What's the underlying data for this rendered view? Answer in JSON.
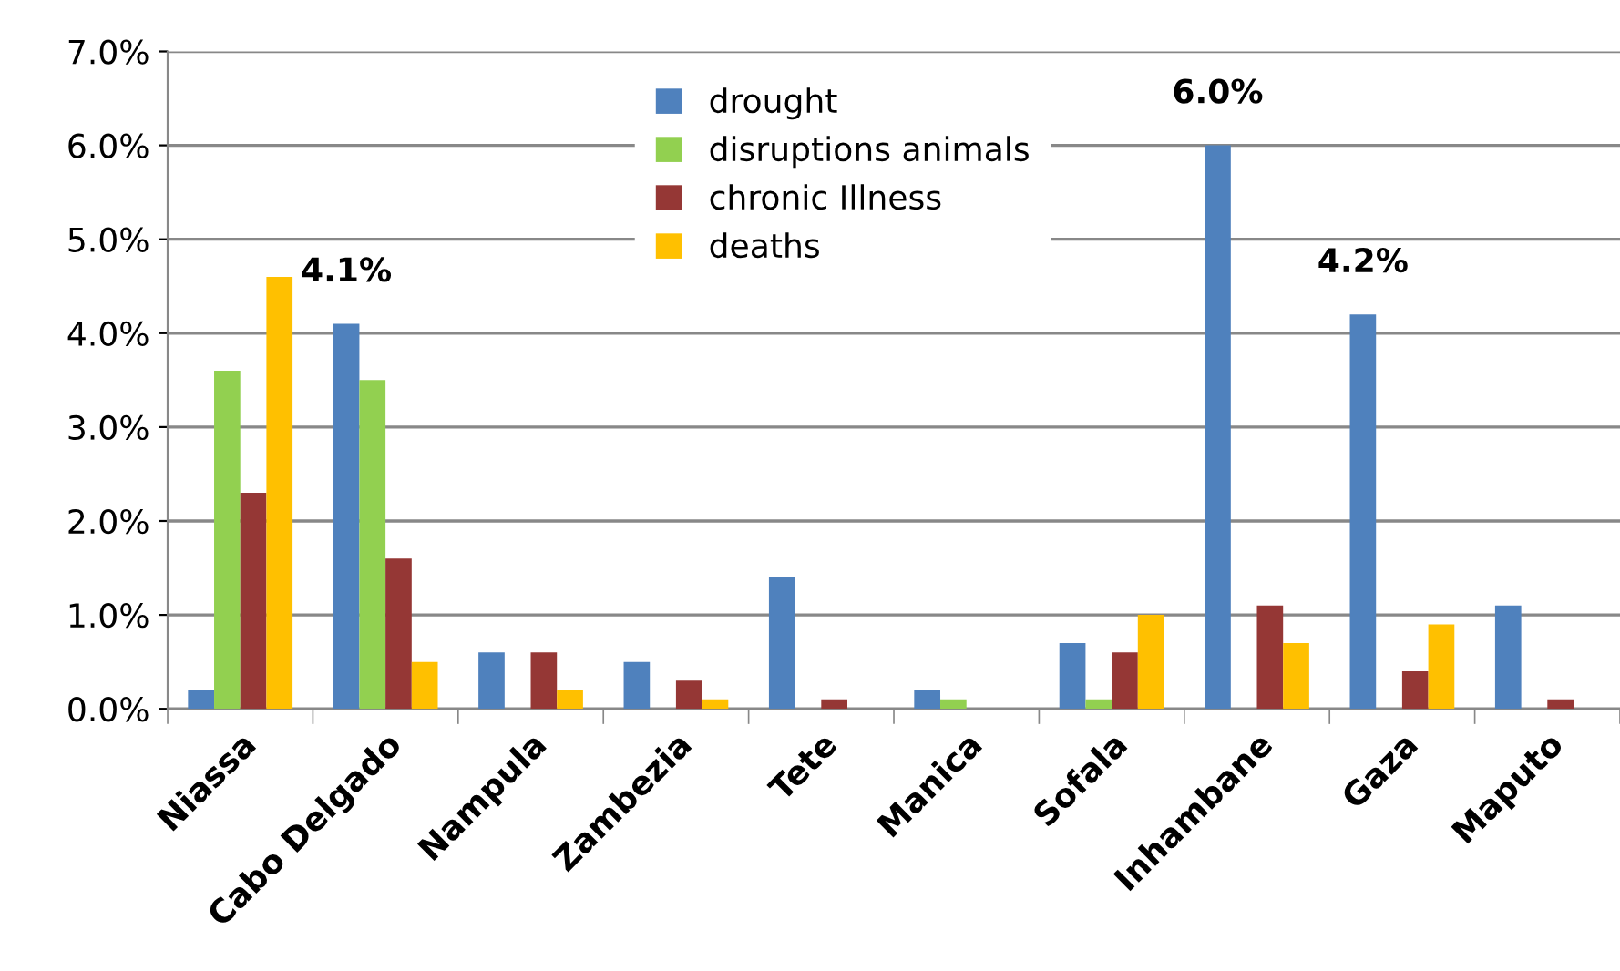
{
  "chart_data": {
    "type": "bar",
    "categories": [
      "Niassa",
      "Cabo Delgado",
      "Nampula",
      "Zambezia",
      "Tete",
      "Manica",
      "Sofala",
      "Inhambane",
      "Gaza",
      "Maputo"
    ],
    "series": [
      {
        "name": "drought",
        "color": "#4f81bd",
        "values": [
          0.2,
          4.1,
          0.6,
          0.5,
          1.4,
          0.2,
          0.7,
          6.0,
          4.2,
          1.1
        ],
        "value_labels": [
          null,
          "4.1%",
          null,
          null,
          null,
          null,
          null,
          "6.0%",
          "4.2%",
          null
        ]
      },
      {
        "name": "disruptions animals",
        "color": "#92d050",
        "values": [
          3.6,
          3.5,
          0,
          0,
          0,
          0.1,
          0.1,
          0,
          0,
          0
        ]
      },
      {
        "name": "chronic Illness",
        "color": "#953735",
        "values": [
          2.3,
          1.6,
          0.6,
          0.3,
          0.1,
          0,
          0.6,
          1.1,
          0.4,
          0.1
        ]
      },
      {
        "name": "deaths",
        "color": "#ffc000",
        "values": [
          4.6,
          0.5,
          0.2,
          0.1,
          0,
          0,
          1.0,
          0.7,
          0.9,
          null
        ]
      }
    ],
    "ylim": [
      0,
      7
    ],
    "yticks": [
      {
        "value": 0,
        "label": "0.0%"
      },
      {
        "value": 1,
        "label": "1.0%"
      },
      {
        "value": 2,
        "label": "2.0%"
      },
      {
        "value": 3,
        "label": "3.0%"
      },
      {
        "value": 4,
        "label": "4.0%"
      },
      {
        "value": 5,
        "label": "5.0%"
      },
      {
        "value": 6,
        "label": "6.0%"
      },
      {
        "value": 7,
        "label": "7.0%"
      }
    ],
    "grid": "y",
    "legend": "top"
  }
}
